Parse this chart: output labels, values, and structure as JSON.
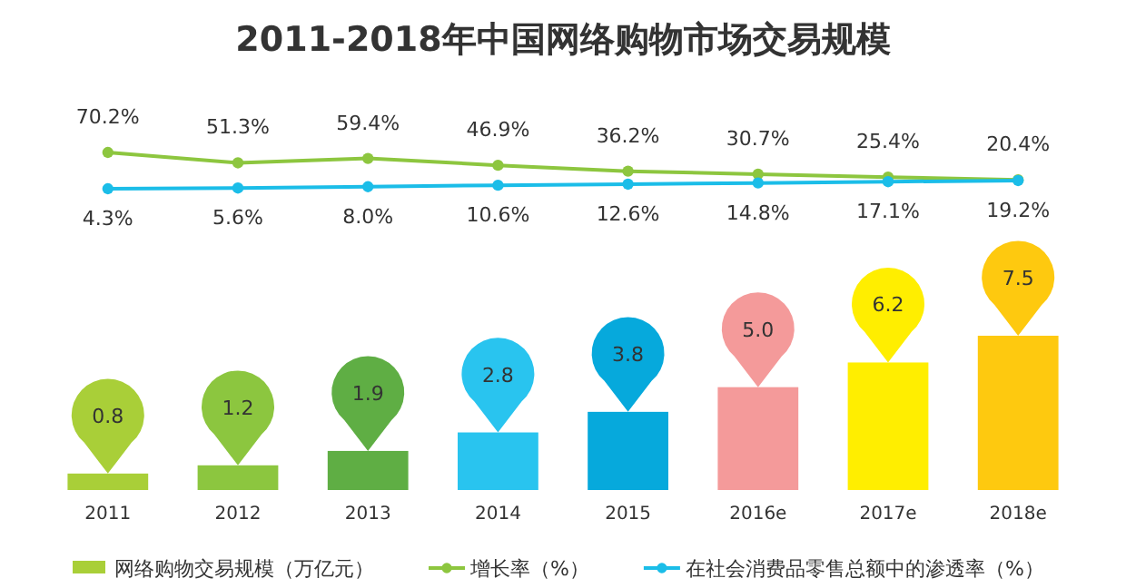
{
  "chart_data": [
    {
      "type": "line",
      "title": "2011-2018年中国网络购物市场交易规模",
      "categories": [
        null,
        null,
        null,
        null,
        null,
        null,
        null,
        null
      ],
      "series": [
        {
          "name": "增长率（%）",
          "color": "#8dc63f",
          "values": [
            70.2,
            51.3,
            59.4,
            46.9,
            36.2,
            30.7,
            25.4,
            20.4
          ],
          "value_labels": [
            "70.2%",
            "51.3%",
            "59.4%",
            "46.9%",
            "36.2%",
            "30.7%",
            "25.4%",
            "20.4%"
          ]
        },
        {
          "name": "在社会消费品零售总额中的渗透率（%）",
          "color": "#1bbde8",
          "values": [
            4.3,
            5.6,
            8.0,
            10.6,
            12.6,
            14.8,
            17.1,
            19.2
          ],
          "value_labels": [
            "4.3%",
            "5.6%",
            "8.0%",
            "10.6%",
            "12.6%",
            "14.8%",
            "17.1%",
            "19.2%"
          ]
        }
      ],
      "marker": "circle",
      "line_style": "solid",
      "legend": "bottom"
    },
    {
      "type": "bar",
      "categories": [
        "2011",
        "2012",
        "2013",
        "2014",
        "2015",
        "2016e",
        "2017e",
        "2018e"
      ],
      "series": [
        {
          "name": "网络购物交易规模（万亿元）",
          "color": "#a9cf38",
          "colors": [
            "#a9cf38",
            "#8cc63f",
            "#5fae44",
            "#29c4ef",
            "#06a9dc",
            "#f49a9a",
            "#ffee00",
            "#fec90f"
          ],
          "values": [
            0.8,
            1.2,
            1.9,
            2.8,
            3.8,
            5.0,
            6.2,
            7.5
          ],
          "value_labels": [
            "0.8",
            "1.2",
            "1.9",
            "2.8",
            "3.8",
            "5.0",
            "6.2",
            "7.5"
          ]
        }
      ],
      "legend": "bottom"
    }
  ]
}
